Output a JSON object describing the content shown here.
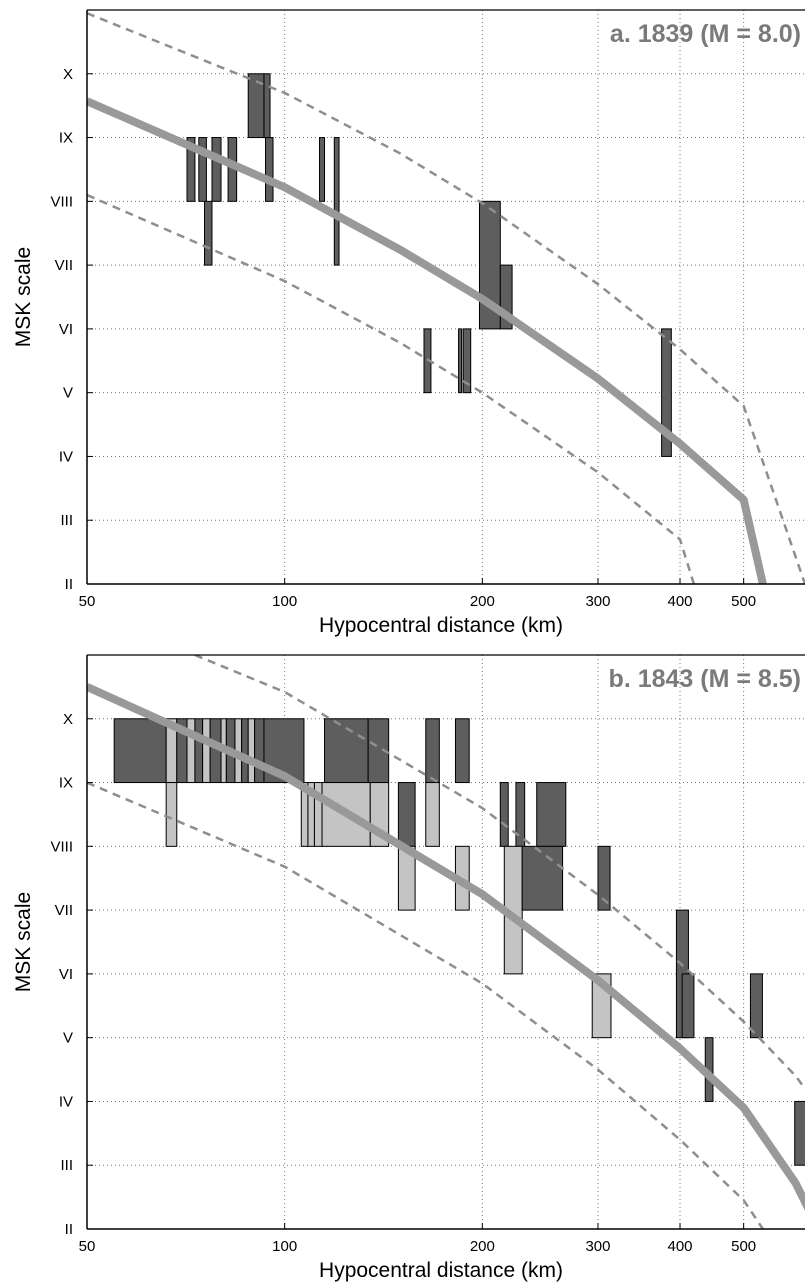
{
  "chart_data": [
    {
      "type": "bar",
      "title": "a. 1839 (M = 8.0)",
      "xlabel": "Hypocentral distance (km)",
      "ylabel": "MSK scale",
      "xscale": "log",
      "xlim": [
        50,
        620
      ],
      "ylim": [
        2,
        11
      ],
      "x_ticks": [
        50,
        100,
        200,
        300,
        400,
        500
      ],
      "y_ticks": [
        {
          "value": 2,
          "label": "II"
        },
        {
          "value": 3,
          "label": "III"
        },
        {
          "value": 4,
          "label": "IV"
        },
        {
          "value": 5,
          "label": "V"
        },
        {
          "value": 6,
          "label": "VI"
        },
        {
          "value": 7,
          "label": "VII"
        },
        {
          "value": 8,
          "label": "VIII"
        },
        {
          "value": 9,
          "label": "IX"
        },
        {
          "value": 10,
          "label": "X"
        }
      ],
      "grid": true,
      "attenuation_curve": {
        "color": "#999999",
        "points": [
          [
            50,
            9.57
          ],
          [
            100,
            8.22
          ],
          [
            150,
            7.24
          ],
          [
            200,
            6.47
          ],
          [
            300,
            5.22
          ],
          [
            400,
            4.2
          ],
          [
            500,
            3.32
          ],
          [
            535,
            2.0
          ]
        ]
      },
      "bounds": [
        {
          "points": [
            [
              50,
              10.95
            ],
            [
              100,
              9.7
            ],
            [
              150,
              8.75
            ],
            [
              200,
              7.97
            ],
            [
              300,
              6.7
            ],
            [
              400,
              5.68
            ],
            [
              500,
              4.79
            ],
            [
              620,
              2.0
            ]
          ]
        },
        {
          "points": [
            [
              50,
              8.1
            ],
            [
              100,
              6.75
            ],
            [
              150,
              5.78
            ],
            [
              200,
              5.0
            ],
            [
              300,
              3.75
            ],
            [
              400,
              2.7
            ],
            [
              420,
              2.0
            ]
          ]
        }
      ],
      "bars": [
        {
          "x0": 88,
          "x1": 93,
          "y0": 9,
          "y1": 10,
          "shade": "dark"
        },
        {
          "x0": 93,
          "x1": 95,
          "y0": 9,
          "y1": 10,
          "shade": "dark"
        },
        {
          "x0": 71,
          "x1": 73,
          "y0": 8,
          "y1": 9,
          "shade": "dark"
        },
        {
          "x0": 74,
          "x1": 76,
          "y0": 8,
          "y1": 9,
          "shade": "dark"
        },
        {
          "x0": 77.5,
          "x1": 80,
          "y0": 8,
          "y1": 9,
          "shade": "dark"
        },
        {
          "x0": 82,
          "x1": 84.5,
          "y0": 8,
          "y1": 9,
          "shade": "dark"
        },
        {
          "x0": 93.5,
          "x1": 96,
          "y0": 8,
          "y1": 9,
          "shade": "dark"
        },
        {
          "x0": 113,
          "x1": 115,
          "y0": 8,
          "y1": 9,
          "shade": "dark"
        },
        {
          "x0": 119,
          "x1": 121,
          "y0": 7,
          "y1": 9,
          "shade": "dark"
        },
        {
          "x0": 75.5,
          "x1": 77.5,
          "y0": 7,
          "y1": 8,
          "shade": "dark"
        },
        {
          "x0": 198,
          "x1": 213,
          "y0": 6,
          "y1": 8,
          "shade": "dark"
        },
        {
          "x0": 213,
          "x1": 222,
          "y0": 6,
          "y1": 7,
          "shade": "dark"
        },
        {
          "x0": 163,
          "x1": 167,
          "y0": 5,
          "y1": 6,
          "shade": "dark"
        },
        {
          "x0": 184,
          "x1": 186,
          "y0": 5,
          "y1": 6,
          "shade": "dark"
        },
        {
          "x0": 187,
          "x1": 192,
          "y0": 5,
          "y1": 6,
          "shade": "dark"
        },
        {
          "x0": 375,
          "x1": 388,
          "y0": 4,
          "y1": 6,
          "shade": "dark"
        }
      ]
    },
    {
      "type": "bar",
      "title": "b. 1843 (M = 8.5)",
      "xlabel": "Hypocentral distance (km)",
      "ylabel": "MSK scale",
      "xscale": "log",
      "xlim": [
        50,
        620
      ],
      "ylim": [
        2,
        11
      ],
      "x_ticks": [
        50,
        100,
        200,
        300,
        400,
        500
      ],
      "y_ticks": [
        {
          "value": 2,
          "label": "II"
        },
        {
          "value": 3,
          "label": "III"
        },
        {
          "value": 4,
          "label": "IV"
        },
        {
          "value": 5,
          "label": "V"
        },
        {
          "value": 6,
          "label": "VI"
        },
        {
          "value": 7,
          "label": "VII"
        },
        {
          "value": 8,
          "label": "VIII"
        },
        {
          "value": 9,
          "label": "IX"
        },
        {
          "value": 10,
          "label": "X"
        }
      ],
      "grid": true,
      "attenuation_curve": {
        "color": "#999999",
        "points": [
          [
            50,
            10.5
          ],
          [
            100,
            9.1
          ],
          [
            200,
            7.25
          ],
          [
            300,
            5.9
          ],
          [
            400,
            4.83
          ],
          [
            500,
            3.9
          ],
          [
            600,
            2.72
          ],
          [
            650,
            2.0
          ]
        ]
      },
      "bounds": [
        {
          "points": [
            [
              73,
              11.0
            ],
            [
              100,
              10.42
            ],
            [
              200,
              8.6
            ],
            [
              300,
              7.24
            ],
            [
              400,
              6.17
            ],
            [
              500,
              5.25
            ],
            [
              600,
              4.4
            ],
            [
              620,
              4.2
            ]
          ]
        },
        {
          "points": [
            [
              50,
              9.0
            ],
            [
              100,
              7.68
            ],
            [
              200,
              5.85
            ],
            [
              300,
              4.5
            ],
            [
              400,
              3.4
            ],
            [
              500,
              2.45
            ],
            [
              535,
              2.0
            ]
          ]
        }
      ],
      "bars": [
        {
          "x0": 55,
          "x1": 66,
          "y0": 9,
          "y1": 10,
          "shade": "dark"
        },
        {
          "x0": 66,
          "x1": 68.5,
          "y0": 9,
          "y1": 10,
          "shade": "light"
        },
        {
          "x0": 68.5,
          "x1": 71,
          "y0": 9,
          "y1": 10,
          "shade": "dark"
        },
        {
          "x0": 71,
          "x1": 73,
          "y0": 9,
          "y1": 10,
          "shade": "light"
        },
        {
          "x0": 73,
          "x1": 75,
          "y0": 9,
          "y1": 10,
          "shade": "dark"
        },
        {
          "x0": 75,
          "x1": 77,
          "y0": 9,
          "y1": 10,
          "shade": "light"
        },
        {
          "x0": 77,
          "x1": 80,
          "y0": 9,
          "y1": 10,
          "shade": "dark"
        },
        {
          "x0": 80,
          "x1": 81.5,
          "y0": 9,
          "y1": 10,
          "shade": "light"
        },
        {
          "x0": 81.5,
          "x1": 84,
          "y0": 9,
          "y1": 10,
          "shade": "dark"
        },
        {
          "x0": 84,
          "x1": 86,
          "y0": 9,
          "y1": 10,
          "shade": "light"
        },
        {
          "x0": 86,
          "x1": 88,
          "y0": 9,
          "y1": 10,
          "shade": "dark"
        },
        {
          "x0": 88,
          "x1": 90,
          "y0": 9,
          "y1": 10,
          "shade": "light"
        },
        {
          "x0": 90,
          "x1": 93,
          "y0": 9,
          "y1": 10,
          "shade": "dark"
        },
        {
          "x0": 93,
          "x1": 107,
          "y0": 9,
          "y1": 10,
          "shade": "dark"
        },
        {
          "x0": 115,
          "x1": 134,
          "y0": 9,
          "y1": 10,
          "shade": "dark"
        },
        {
          "x0": 134,
          "x1": 144,
          "y0": 9,
          "y1": 10,
          "shade": "dark"
        },
        {
          "x0": 164,
          "x1": 172,
          "y0": 9,
          "y1": 10,
          "shade": "dark"
        },
        {
          "x0": 182,
          "x1": 191,
          "y0": 9,
          "y1": 10,
          "shade": "dark"
        },
        {
          "x0": 66,
          "x1": 68.5,
          "y0": 8,
          "y1": 9,
          "shade": "light"
        },
        {
          "x0": 106,
          "x1": 108.5,
          "y0": 8,
          "y1": 9,
          "shade": "light"
        },
        {
          "x0": 108.5,
          "x1": 111,
          "y0": 8,
          "y1": 9,
          "shade": "light"
        },
        {
          "x0": 111,
          "x1": 114,
          "y0": 8,
          "y1": 9,
          "shade": "light"
        },
        {
          "x0": 114,
          "x1": 135,
          "y0": 8,
          "y1": 9,
          "shade": "light"
        },
        {
          "x0": 135,
          "x1": 144,
          "y0": 8,
          "y1": 9,
          "shade": "light"
        },
        {
          "x0": 149,
          "x1": 158,
          "y0": 8,
          "y1": 9,
          "shade": "dark"
        },
        {
          "x0": 164,
          "x1": 172,
          "y0": 8,
          "y1": 9,
          "shade": "light"
        },
        {
          "x0": 213,
          "x1": 219,
          "y0": 8,
          "y1": 9,
          "shade": "dark"
        },
        {
          "x0": 225,
          "x1": 232,
          "y0": 8,
          "y1": 9,
          "shade": "dark"
        },
        {
          "x0": 242,
          "x1": 268,
          "y0": 8,
          "y1": 9,
          "shade": "dark"
        },
        {
          "x0": 149,
          "x1": 158,
          "y0": 7,
          "y1": 8,
          "shade": "light"
        },
        {
          "x0": 182,
          "x1": 191,
          "y0": 7,
          "y1": 8,
          "shade": "light"
        },
        {
          "x0": 216,
          "x1": 230,
          "y0": 6,
          "y1": 8,
          "shade": "light"
        },
        {
          "x0": 230,
          "x1": 265,
          "y0": 7,
          "y1": 8,
          "shade": "dark"
        },
        {
          "x0": 300,
          "x1": 313,
          "y0": 7,
          "y1": 8,
          "shade": "dark"
        },
        {
          "x0": 395,
          "x1": 412,
          "y0": 5,
          "y1": 7,
          "shade": "dark"
        },
        {
          "x0": 403,
          "x1": 420,
          "y0": 5,
          "y1": 6,
          "shade": "dark"
        },
        {
          "x0": 512,
          "x1": 534,
          "y0": 5,
          "y1": 6,
          "shade": "dark"
        },
        {
          "x0": 294,
          "x1": 314,
          "y0": 5,
          "y1": 6,
          "shade": "light"
        },
        {
          "x0": 437,
          "x1": 449,
          "y0": 4,
          "y1": 5,
          "shade": "dark"
        },
        {
          "x0": 598,
          "x1": 630,
          "y0": 3,
          "y1": 4,
          "shade": "dark"
        }
      ]
    }
  ]
}
